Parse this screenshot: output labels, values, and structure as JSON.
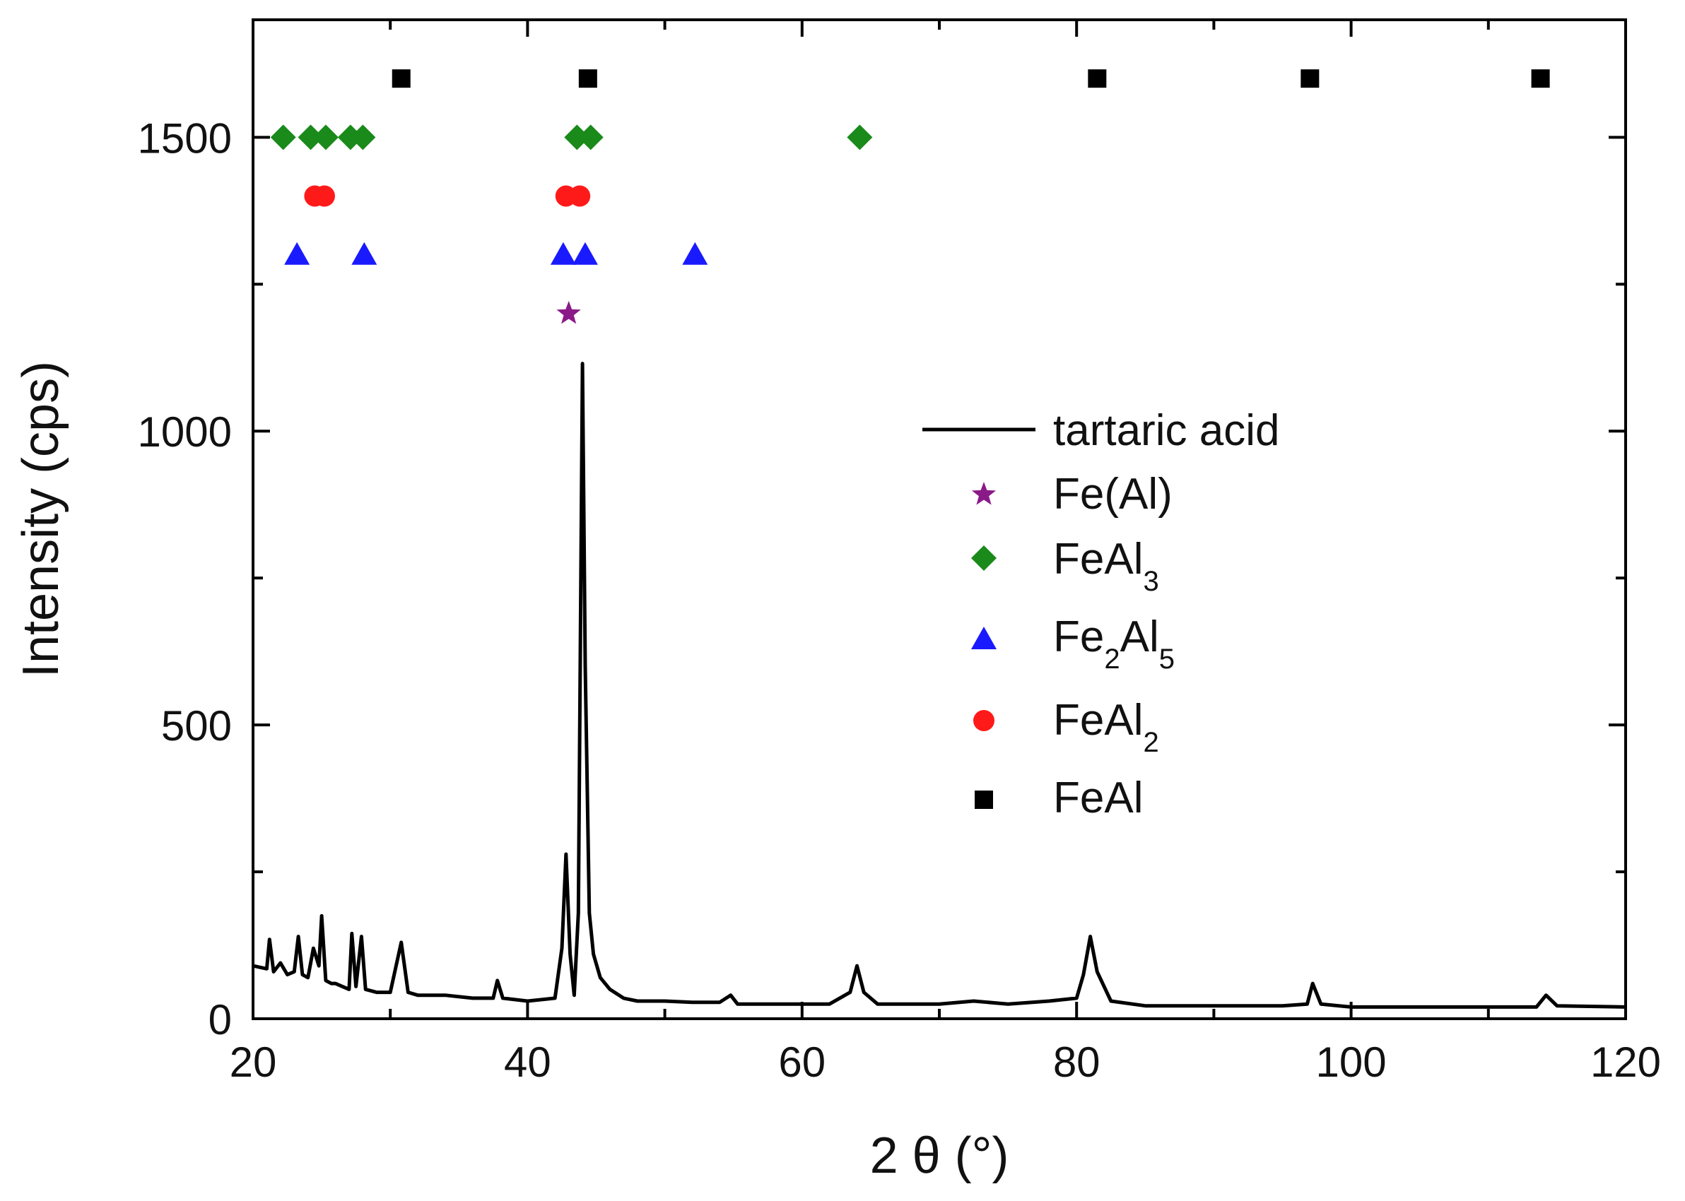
{
  "chart_data": {
    "type": "line",
    "title": "",
    "xlabel": "2 θ (°)",
    "ylabel": "Intensity (cps)",
    "xlim": [
      20,
      120
    ],
    "ylim": [
      0,
      1700
    ],
    "xticks": [
      20,
      40,
      60,
      80,
      100,
      120
    ],
    "yticks": [
      0,
      500,
      1000,
      1500
    ],
    "xticks_minor": [
      30,
      50,
      70,
      90,
      110
    ],
    "yticks_minor": [
      250,
      750,
      1250
    ],
    "grid": false,
    "legend_position": "center-right",
    "series": [
      {
        "name": "tartaric acid",
        "kind": "line",
        "color": "#000000",
        "x": [
          20,
          21,
          21.2,
          21.5,
          22,
          22.5,
          23,
          23.3,
          23.6,
          24,
          24.4,
          24.8,
          25,
          25.3,
          25.7,
          26,
          26.5,
          27,
          27.2,
          27.5,
          27.9,
          28.2,
          29,
          30,
          30.8,
          31.3,
          32,
          34,
          36,
          37.5,
          37.8,
          38.2,
          40,
          42,
          42.5,
          42.8,
          43.1,
          43.4,
          43.7,
          44,
          44.2,
          44.5,
          44.8,
          45.3,
          46,
          47,
          48,
          50,
          52,
          54,
          54.8,
          55.3,
          58,
          60,
          62,
          63.5,
          64,
          64.5,
          65.5,
          70,
          72.5,
          75,
          78,
          80,
          80.5,
          81,
          81.5,
          82.5,
          85,
          90,
          95,
          96.8,
          97.2,
          97.8,
          100,
          105,
          110,
          113.5,
          114.2,
          115,
          120
        ],
        "y": [
          90,
          85,
          135,
          80,
          95,
          75,
          80,
          140,
          75,
          70,
          120,
          90,
          175,
          65,
          60,
          60,
          55,
          50,
          145,
          55,
          140,
          50,
          45,
          45,
          130,
          45,
          40,
          40,
          35,
          35,
          65,
          35,
          30,
          35,
          120,
          280,
          110,
          40,
          180,
          1115,
          600,
          180,
          110,
          70,
          50,
          35,
          30,
          30,
          28,
          28,
          40,
          25,
          25,
          25,
          25,
          45,
          90,
          45,
          25,
          25,
          30,
          25,
          30,
          35,
          75,
          140,
          80,
          30,
          22,
          22,
          22,
          25,
          60,
          25,
          20,
          20,
          20,
          20,
          40,
          22,
          20
        ]
      },
      {
        "name": "Fe(Al)",
        "kind": "scatter",
        "marker": "star",
        "color": "#8b1a89",
        "x": [
          43
        ],
        "y": [
          1200
        ]
      },
      {
        "name": "FeAl",
        "sub": "3",
        "kind": "scatter",
        "marker": "diamond",
        "color": "#1a8a1a",
        "x": [
          22.2,
          24.2,
          25.3,
          27.1,
          28,
          43.6,
          44.6,
          64.2
        ],
        "y": [
          1500,
          1500,
          1500,
          1500,
          1500,
          1500,
          1500,
          1500
        ]
      },
      {
        "name": "Fe",
        "mid": "Al",
        "sub1": "2",
        "sub2": "5",
        "kind": "scatter",
        "marker": "triangle",
        "color": "#1a1aff",
        "x": [
          23.2,
          28.1,
          42.6,
          44.2,
          52.2
        ],
        "y": [
          1300,
          1300,
          1300,
          1300,
          1300
        ]
      },
      {
        "name": "FeAl",
        "sub": "2",
        "kind": "scatter",
        "marker": "circle",
        "color": "#ff1a1a",
        "x": [
          24.5,
          25.2,
          42.8,
          43.8
        ],
        "y": [
          1400,
          1400,
          1400,
          1400
        ]
      },
      {
        "name": "FeAl",
        "kind": "scatter",
        "marker": "square",
        "color": "#000000",
        "x": [
          30.8,
          44.4,
          81.5,
          97,
          113.8
        ],
        "y": [
          1600,
          1600,
          1600,
          1600,
          1600
        ]
      }
    ]
  }
}
